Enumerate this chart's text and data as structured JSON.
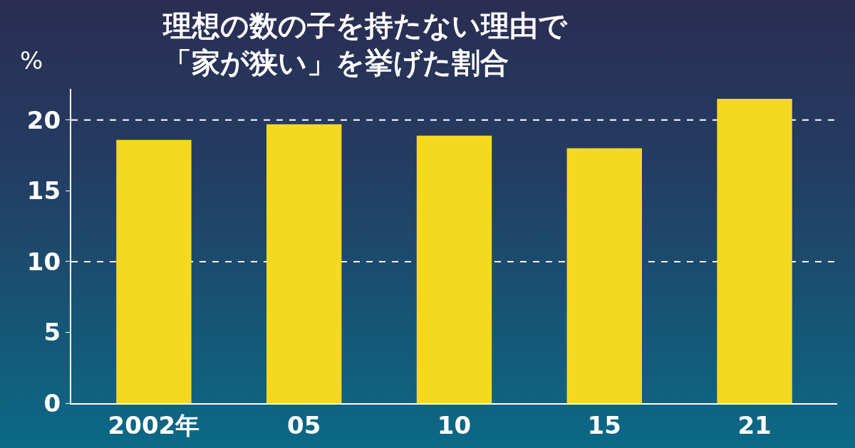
{
  "chart_data": {
    "type": "bar",
    "title": "理想の数の子を持たない理由で「家が狭い」を挙げた割合",
    "ylabel": "%",
    "categories": [
      "2002年",
      "05",
      "10",
      "15",
      "21"
    ],
    "values": [
      18.6,
      19.7,
      18.9,
      18.0,
      21.5
    ],
    "color": "#f5d921",
    "ylim": [
      0,
      22.2
    ],
    "yticks": [
      0,
      5,
      10,
      15,
      20
    ],
    "grid": false,
    "ref_lines": [
      {
        "axis": "y",
        "value": 10,
        "line_style": "dashed",
        "color": "#ffffff"
      },
      {
        "axis": "y",
        "value": 20,
        "line_style": "dashed",
        "color": "#ffffff"
      }
    ]
  }
}
